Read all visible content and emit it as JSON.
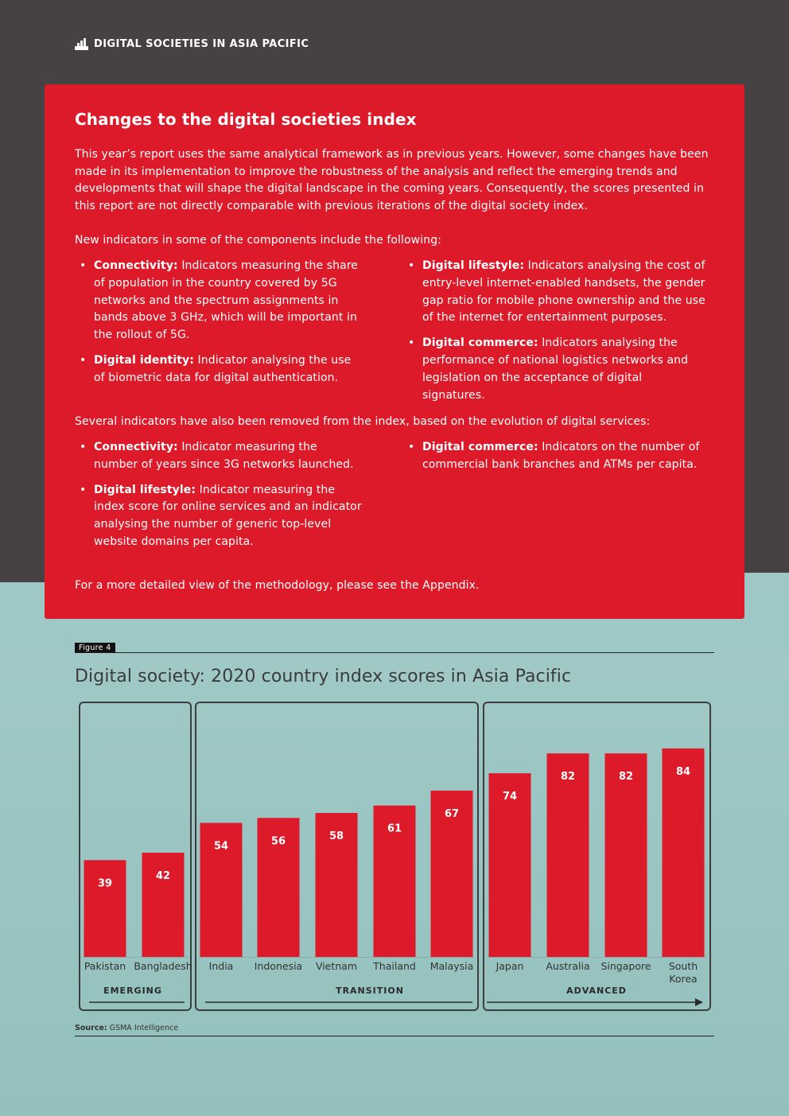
{
  "header": {
    "title": "DIGITAL SOCIETIES IN ASIA PACIFIC"
  },
  "box": {
    "title": "Changes to the digital societies index",
    "intro": "This year’s report uses the same analytical framework as in previous years. However, some changes have been made in its implementation to improve the robustness of the analysis and reflect the emerging trends and developments that will shape the digital landscape in the coming years. Consequently, the scores presented in this report are not directly comparable with previous iterations of the digital society index.",
    "new_intro": "New indicators in some of the components include the following:",
    "new_left": [
      {
        "label": "Connectivity:",
        "text": " Indicators measuring the share of population in the country covered by 5G networks and the spectrum assignments in bands above 3 GHz, which will be important in the rollout of 5G."
      },
      {
        "label": "Digital identity:",
        "text": " Indicator analysing the use of biometric data for digital authentication."
      }
    ],
    "new_right": [
      {
        "label": "Digital lifestyle:",
        "text": " Indicators analysing the cost of entry-level internet-enabled handsets, the gender gap ratio for mobile phone ownership and the use of the internet for entertainment purposes."
      },
      {
        "label": "Digital commerce:",
        "text": " Indicators analysing the performance of national logistics networks and legislation on the acceptance of digital signatures."
      }
    ],
    "removed_intro": "Several indicators have also been removed from the index, based on the evolution of digital services:",
    "removed_left": [
      {
        "label": "Connectivity:",
        "text": " Indicator measuring the number of years since 3G networks launched."
      },
      {
        "label": "Digital lifestyle:",
        "text": " Indicator measuring the index score for online services and an indicator analysing the number of generic top-level website domains per capita."
      }
    ],
    "removed_right": [
      {
        "label": "Digital commerce:",
        "text": " Indicators on the number of commercial bank branches and ATMs per capita."
      }
    ],
    "outro": "For a more detailed view of the methodology, please see the Appendix."
  },
  "figure": {
    "tag": "Figure 4",
    "title": "Digital society: 2020 country index scores in Asia Pacific",
    "source_label": "Source:",
    "source_text": " GSMA Intelligence"
  },
  "chart_data": {
    "type": "bar",
    "categories": [
      "Pakistan",
      "Bangladesh",
      "India",
      "Indonesia",
      "Vietnam",
      "Thailand",
      "Malaysia",
      "Japan",
      "Australia",
      "Singapore",
      "South Korea"
    ],
    "values": [
      39,
      42,
      54,
      56,
      58,
      61,
      67,
      74,
      82,
      82,
      84
    ],
    "groups": [
      {
        "name": "EMERGING",
        "categories": [
          "Pakistan",
          "Bangladesh"
        ]
      },
      {
        "name": "TRANSITION",
        "categories": [
          "India",
          "Indonesia",
          "Vietnam",
          "Thailand",
          "Malaysia"
        ]
      },
      {
        "name": "ADVANCED",
        "categories": [
          "Japan",
          "Australia",
          "Singapore",
          "South Korea"
        ]
      }
    ],
    "title": "Digital society: 2020 country index scores in Asia Pacific",
    "xlabel": "",
    "ylabel": "",
    "data_labels": true,
    "grid": false,
    "bar_color": "#dd1a2a"
  },
  "colors": {
    "accent": "#dd1a2a",
    "dark": "#464243"
  }
}
